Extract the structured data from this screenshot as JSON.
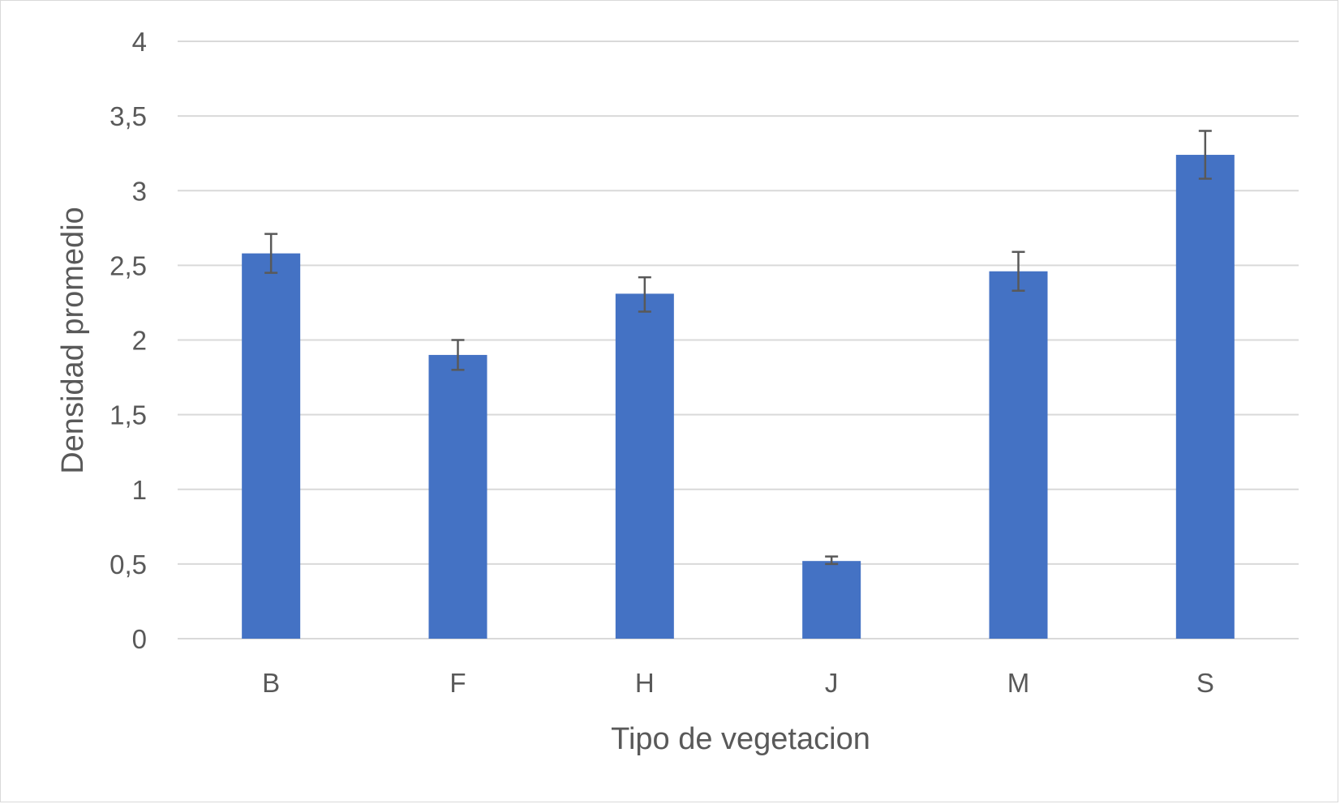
{
  "chart_data": {
    "type": "bar",
    "title": "",
    "xlabel": "Tipo de vegetacion",
    "ylabel": "Densidad promedio",
    "categories": [
      "B",
      "F",
      "H",
      "J",
      "M",
      "S"
    ],
    "values": [
      2.58,
      1.9,
      2.31,
      0.52,
      2.46,
      3.24
    ],
    "error_bars": [
      {
        "low": 2.45,
        "high": 2.71
      },
      {
        "low": 1.8,
        "high": 2.0
      },
      {
        "low": 2.19,
        "high": 2.42
      },
      {
        "low": 0.5,
        "high": 0.55
      },
      {
        "low": 2.33,
        "high": 2.59
      },
      {
        "low": 3.08,
        "high": 3.4
      }
    ],
    "ylim": [
      0,
      4
    ],
    "y_ticks": [
      {
        "value": 0,
        "label": "0"
      },
      {
        "value": 0.5,
        "label": "0,5"
      },
      {
        "value": 1,
        "label": "1"
      },
      {
        "value": 1.5,
        "label": "1,5"
      },
      {
        "value": 2,
        "label": "2"
      },
      {
        "value": 2.5,
        "label": "2,5"
      },
      {
        "value": 3,
        "label": "3"
      },
      {
        "value": 3.5,
        "label": "3,5"
      },
      {
        "value": 4,
        "label": "4"
      }
    ],
    "grid": true,
    "legend": "none",
    "colors": {
      "bar": "#4472C4",
      "gridline": "#d9d9d9",
      "error_bar": "#595959",
      "text": "#595959"
    }
  }
}
